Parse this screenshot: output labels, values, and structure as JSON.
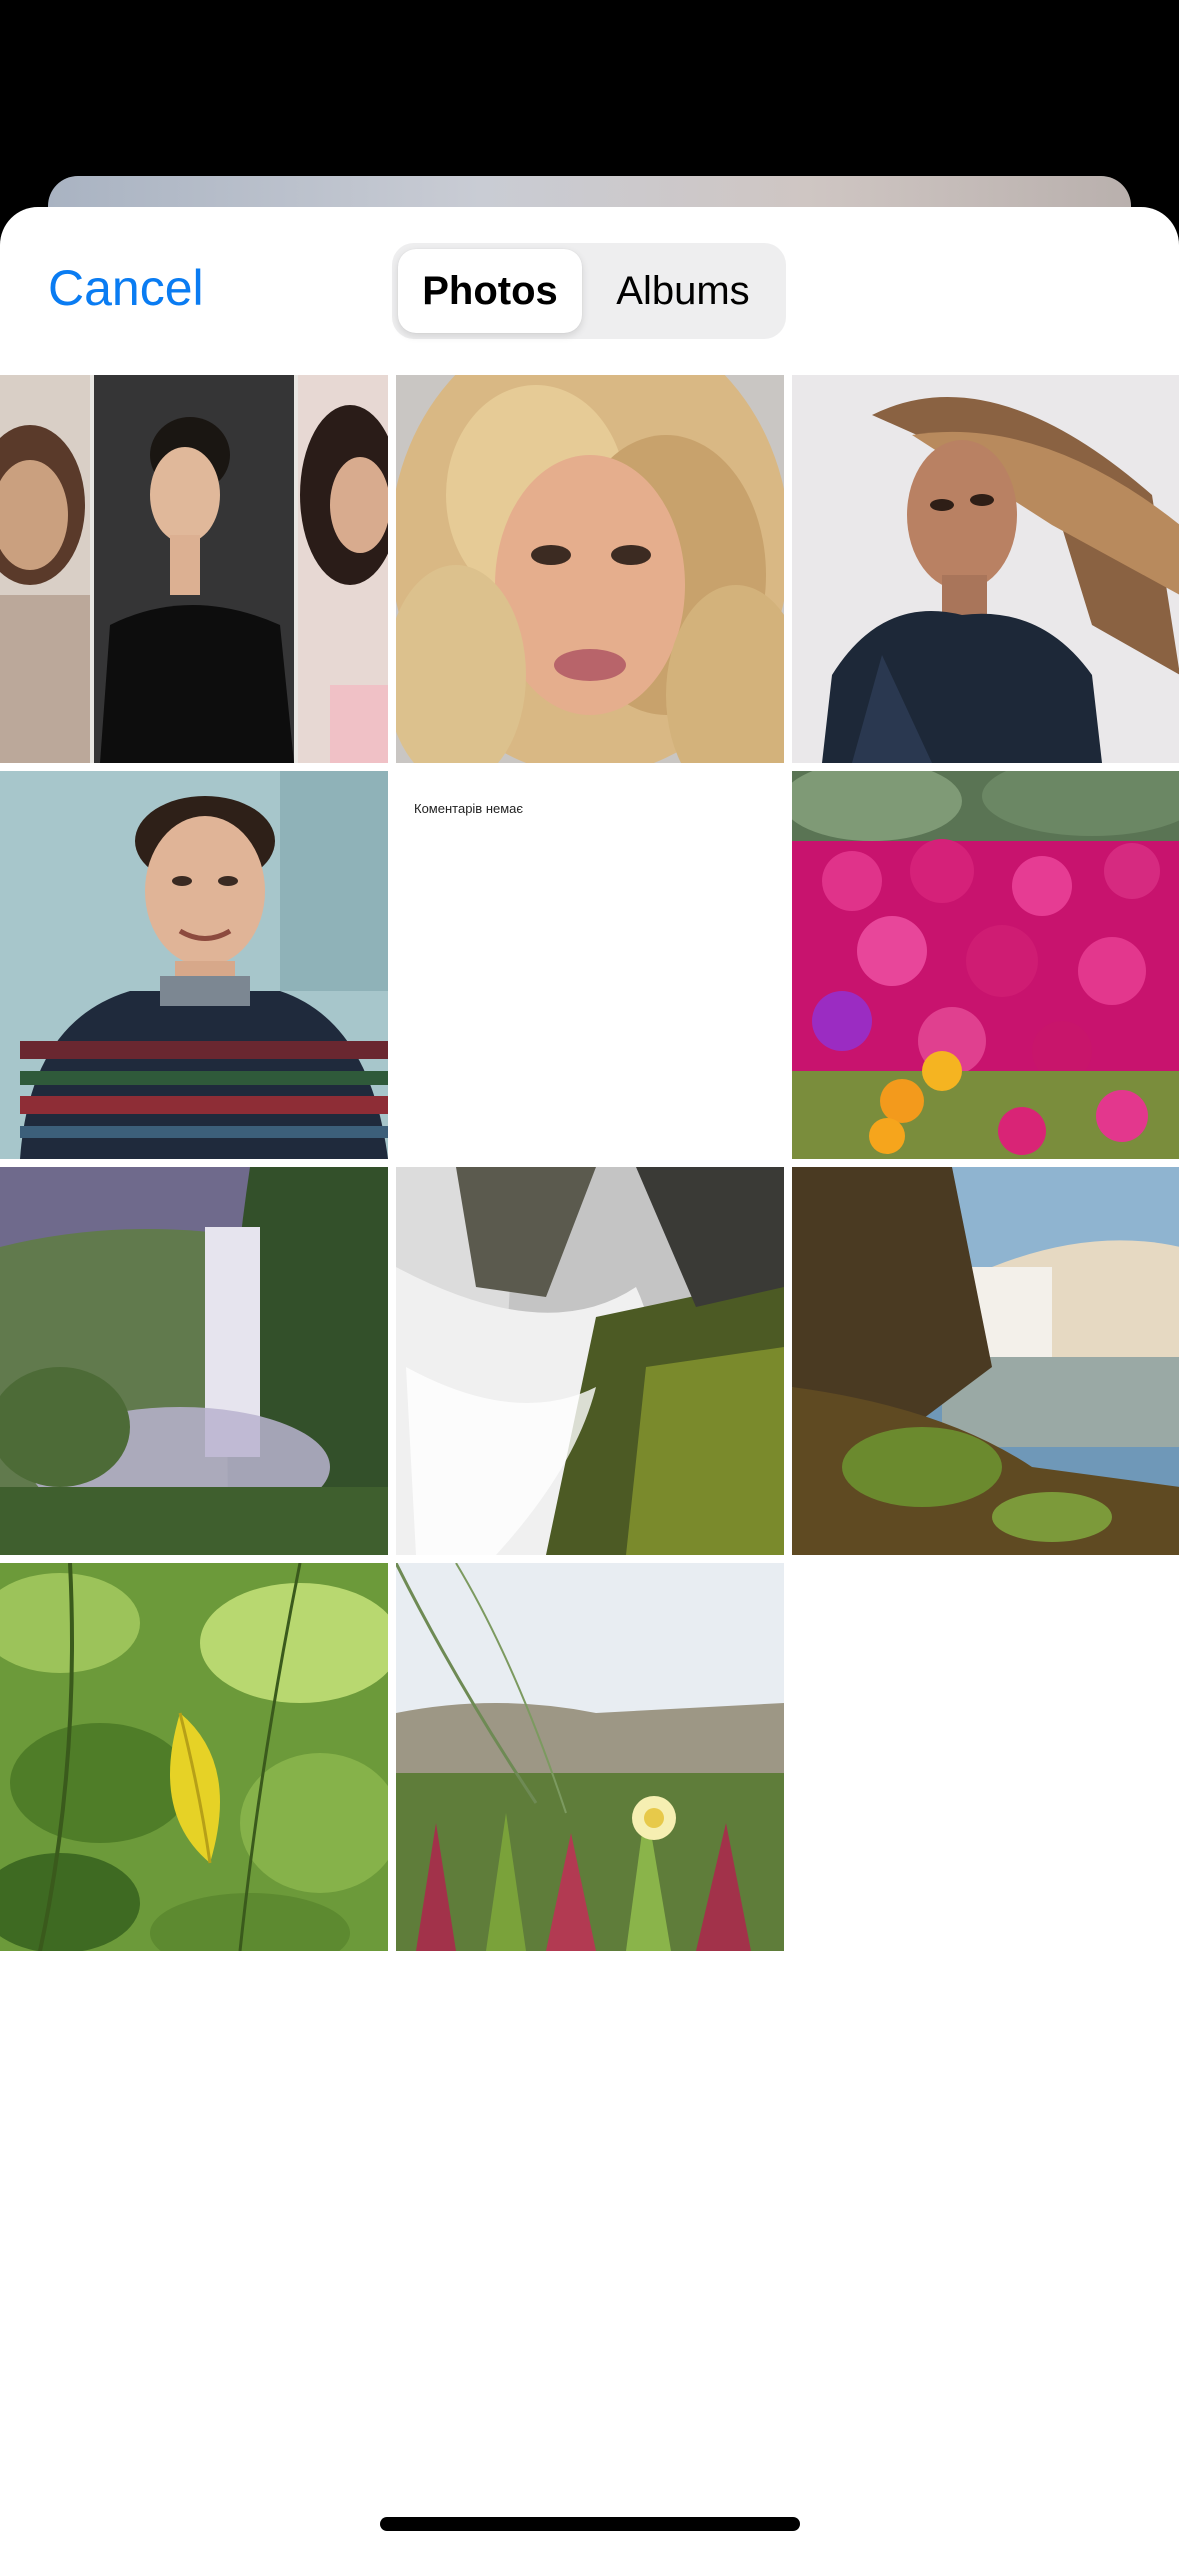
{
  "nav": {
    "cancel_label": "Cancel",
    "tabs": [
      {
        "label": "Photos",
        "selected": true
      },
      {
        "label": "Albums",
        "selected": false
      }
    ]
  },
  "colors": {
    "accent": "#0a7cf2",
    "segment_bg": "#eeeeef"
  },
  "photos": [
    {
      "name": "photo-collage-portraits"
    },
    {
      "name": "photo-blonde-curly-portrait"
    },
    {
      "name": "photo-woman-denim-portrait"
    },
    {
      "name": "photo-man-sweater-portrait"
    },
    {
      "name": "photo-document-screenshot",
      "text": "Коментарів немає"
    },
    {
      "name": "photo-pink-flowers"
    },
    {
      "name": "photo-waterfall-cliffs"
    },
    {
      "name": "photo-waterfall-moss-rocks"
    },
    {
      "name": "photo-waterfall-coast"
    },
    {
      "name": "photo-green-leaves"
    },
    {
      "name": "photo-coastal-flower"
    }
  ]
}
